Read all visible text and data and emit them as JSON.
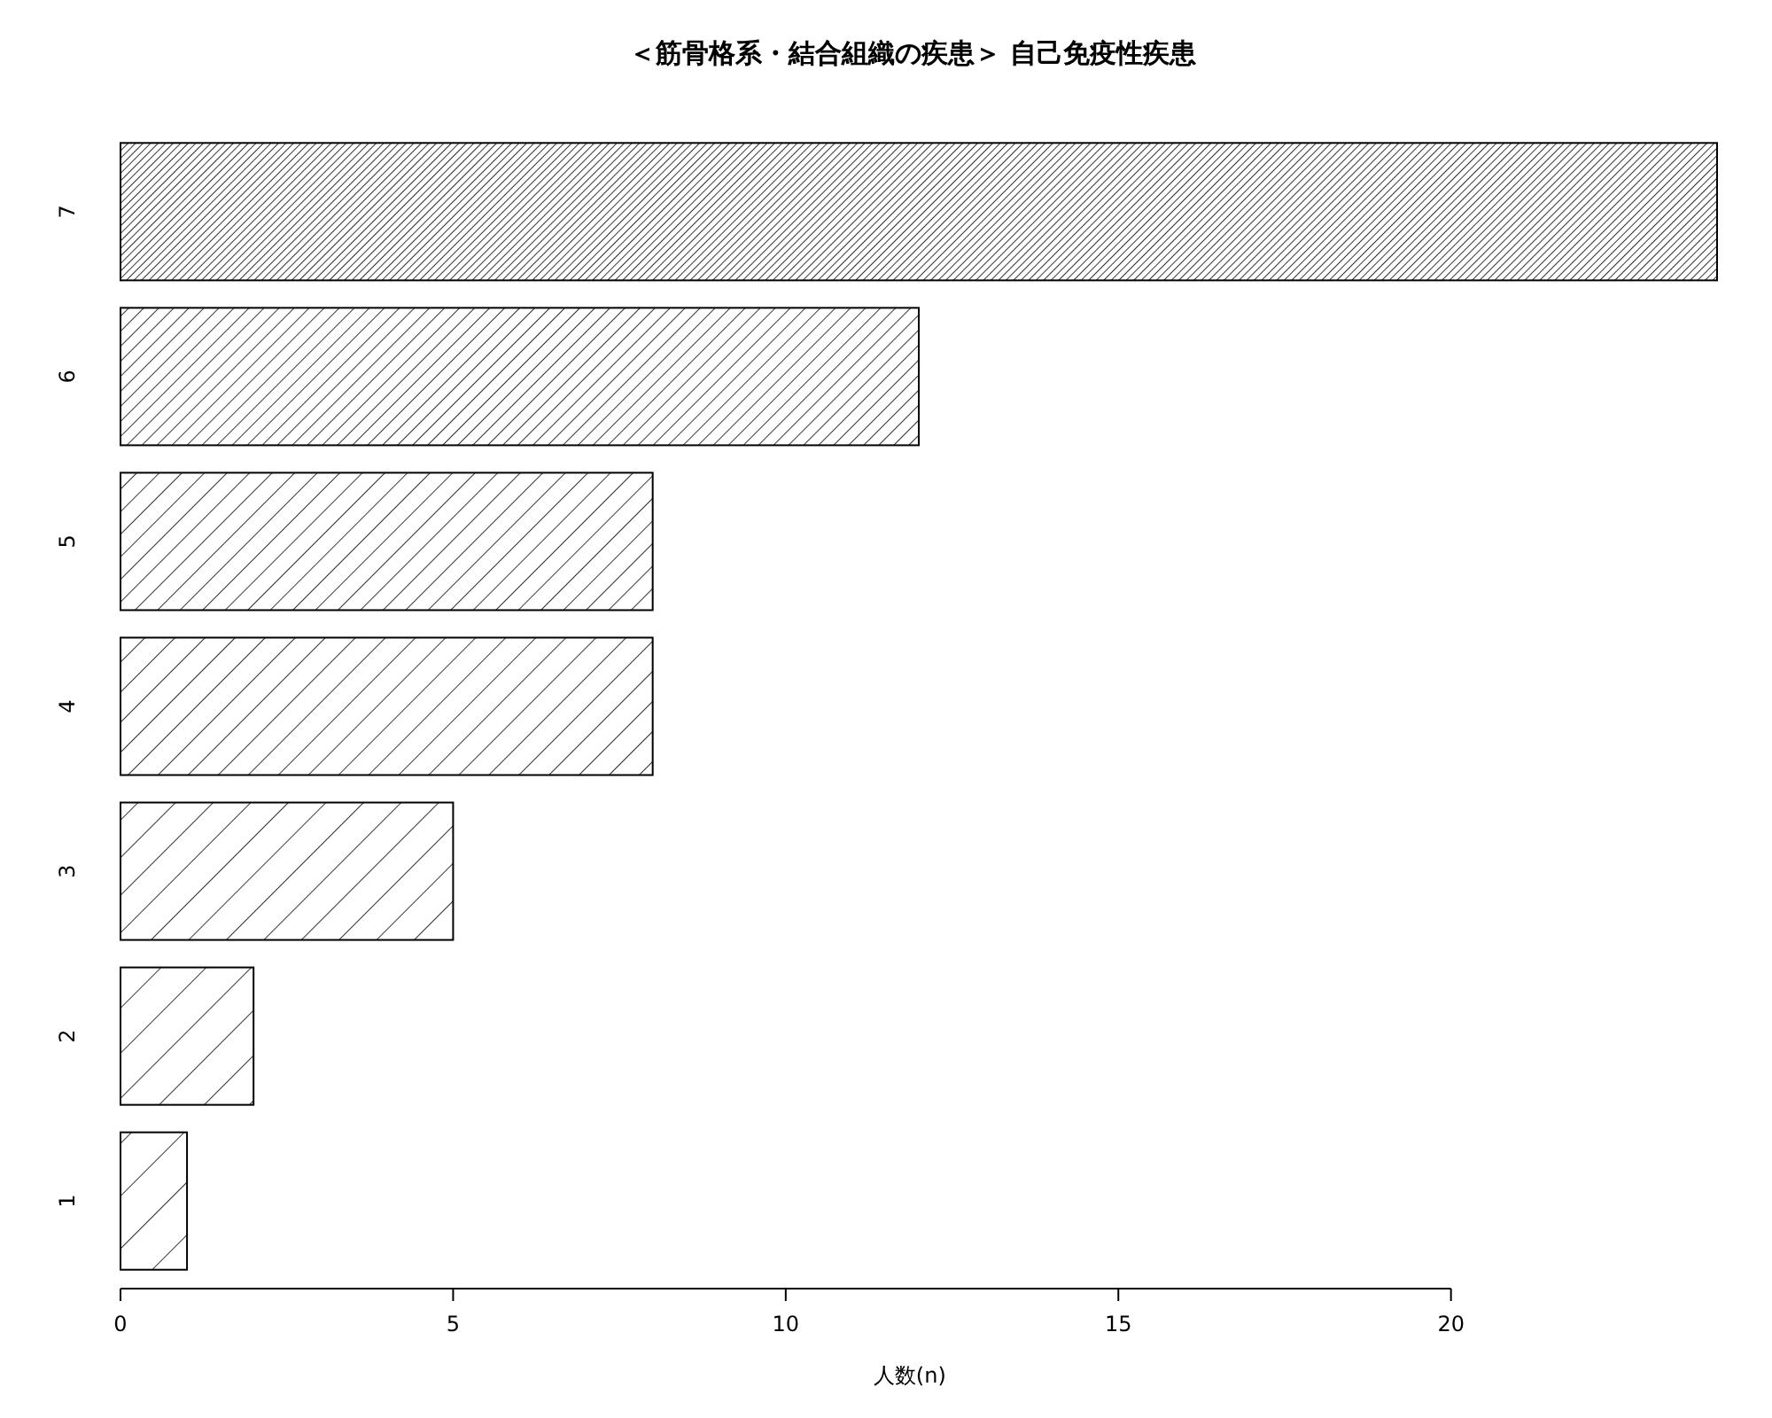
{
  "chart_data": {
    "type": "bar",
    "orientation": "horizontal",
    "title": "＜筋骨格系・結合組織の疾患＞ 自己免疫性疾患",
    "xlabel": "人数(n)",
    "categories": [
      "7",
      "6",
      "5",
      "4",
      "3",
      "2",
      "1"
    ],
    "values": [
      24,
      12,
      8,
      8,
      5,
      2,
      1
    ],
    "xlim": [
      0,
      24
    ],
    "xticks": [
      0,
      5,
      10,
      15,
      20
    ],
    "grid": false
  }
}
